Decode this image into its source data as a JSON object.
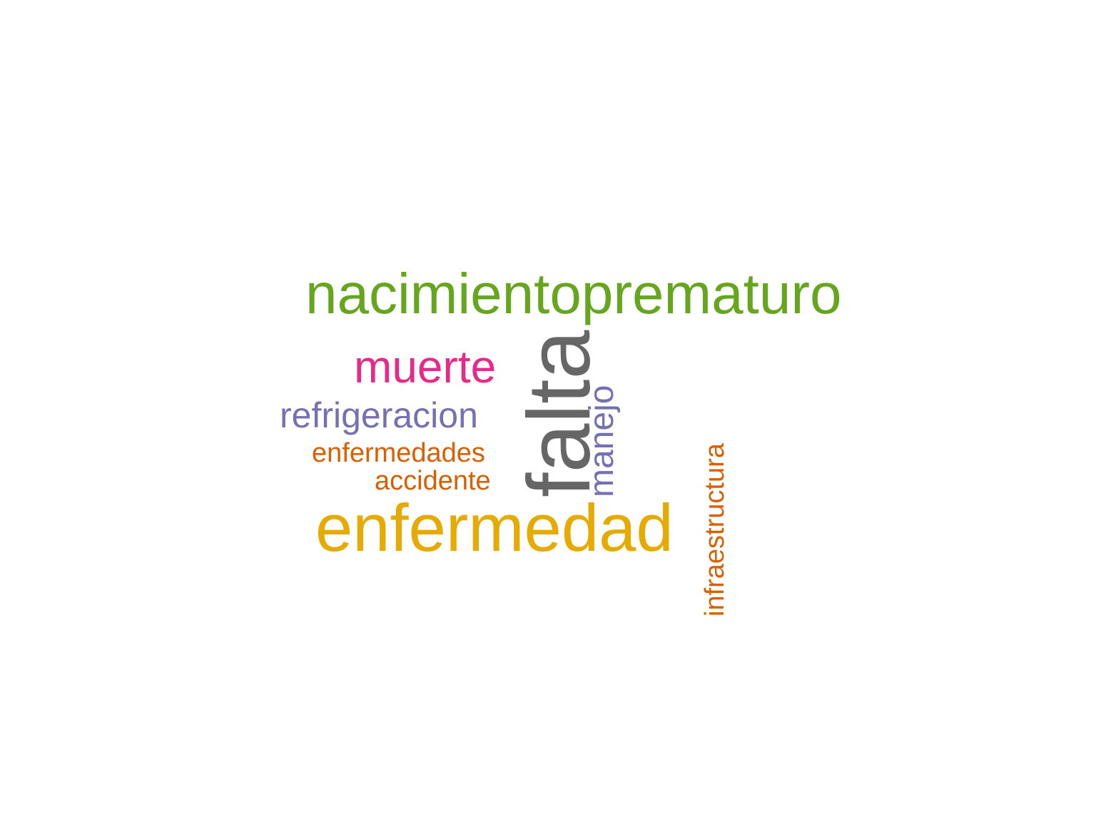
{
  "words": {
    "nacimientoprematuro": {
      "text": "nacimientoprematuro",
      "color": "#66a61e"
    },
    "muerte": {
      "text": "muerte",
      "color": "#e7298a"
    },
    "refrigeracion": {
      "text": "refrigeracion",
      "color": "#7570b3"
    },
    "enfermedades": {
      "text": "enfermedades",
      "color": "#d95f02"
    },
    "accidente": {
      "text": "accidente",
      "color": "#d95f02"
    },
    "enfermedad": {
      "text": "enfermedad",
      "color": "#e6ab02"
    },
    "falta": {
      "text": "falta",
      "color": "#666666"
    },
    "manejo": {
      "text": "manejo",
      "color": "#7570b3"
    },
    "infraestructura": {
      "text": "infraestructura",
      "color": "#d95f02"
    }
  }
}
